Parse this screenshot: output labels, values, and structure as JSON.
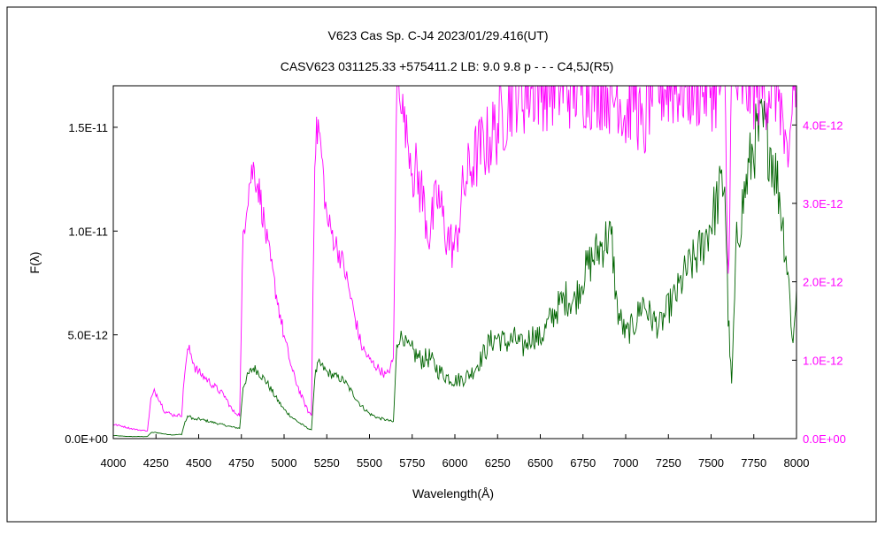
{
  "chart_data": {
    "type": "line",
    "title": "V623 Cas    Sp. C-J4    2023/01/29.416(UT)",
    "subtitle": "CASV623 031125.33 +575411.2  LB: 9.0 9.8 p - - - C4,5J(R5)",
    "xlabel": "Wavelength(Å)",
    "ylabel": "F(λ)",
    "xlim": [
      4000,
      8000
    ],
    "ylim_left": [
      0,
      1.7e-11
    ],
    "ylim_right": [
      0,
      4.5e-12
    ],
    "x_ticks": [
      4000,
      4250,
      4500,
      4750,
      5000,
      5250,
      5500,
      5750,
      6000,
      6250,
      6500,
      6750,
      7000,
      7250,
      7500,
      7750,
      8000
    ],
    "x_tick_labels": [
      "4000",
      "4250",
      "4500",
      "4750",
      "5000",
      "5250",
      "5500",
      "5750",
      "6000",
      "6250",
      "6500",
      "6750",
      "7000",
      "7250",
      "7500",
      "7750",
      "8000"
    ],
    "y_left_ticks": [
      0,
      5e-12,
      1e-11,
      1.5e-11
    ],
    "y_left_tick_labels": [
      "0.0E+00",
      "5.0E-12",
      "1.0E-11",
      "1.5E-11"
    ],
    "y_right_ticks": [
      0,
      1e-12,
      2e-12,
      3e-12,
      4e-12
    ],
    "y_right_tick_labels": [
      "0.0E+00",
      "1.0E-12",
      "2.0E-12",
      "3.0E-12",
      "4.0E-12"
    ],
    "grid": false,
    "legend": "none",
    "series": [
      {
        "axis": "left",
        "color": "#006400",
        "x": [
          4000,
          4050,
          4100,
          4150,
          4200,
          4220,
          4240,
          4260,
          4280,
          4300,
          4350,
          4380,
          4400,
          4420,
          4440,
          4460,
          4480,
          4500,
          4550,
          4600,
          4650,
          4700,
          4740,
          4760,
          4780,
          4800,
          4820,
          4840,
          4860,
          4880,
          4900,
          4950,
          5000,
          5050,
          5100,
          5140,
          5160,
          5180,
          5200,
          5220,
          5250,
          5300,
          5350,
          5400,
          5450,
          5500,
          5550,
          5600,
          5640,
          5660,
          5680,
          5700,
          5750,
          5800,
          5850,
          5900,
          5950,
          6000,
          6050,
          6100,
          6150,
          6200,
          6250,
          6300,
          6350,
          6400,
          6450,
          6500,
          6550,
          6600,
          6650,
          6700,
          6750,
          6800,
          6850,
          6900,
          6920,
          6950,
          7000,
          7050,
          7100,
          7150,
          7200,
          7250,
          7300,
          7350,
          7400,
          7450,
          7500,
          7550,
          7580,
          7600,
          7620,
          7650,
          7700,
          7750,
          7800,
          7850,
          7900,
          7950,
          7980,
          8000
        ],
        "y": [
          1.5e-13,
          1.2e-13,
          1e-13,
          1e-13,
          1e-13,
          2.8e-13,
          3e-13,
          2.8e-13,
          2.5e-13,
          2.2e-13,
          1.8e-13,
          2e-13,
          2e-13,
          8e-13,
          1.1e-12,
          1e-12,
          9e-13,
          9.5e-13,
          8.5e-13,
          7.5e-13,
          6.5e-13,
          5.5e-13,
          5e-13,
          2.5e-12,
          2.9e-12,
          3.2e-12,
          3.4e-12,
          3.3e-12,
          3.1e-12,
          2.9e-12,
          2.7e-12,
          2e-12,
          1.4e-12,
          1e-12,
          7e-13,
          5e-13,
          4e-13,
          3e-12,
          3.6e-12,
          3.5e-12,
          3.2e-12,
          3e-12,
          2.8e-12,
          2.2e-12,
          1.6e-12,
          1.2e-12,
          1e-12,
          9e-13,
          8e-13,
          4.4e-12,
          5e-12,
          4.8e-12,
          4.2e-12,
          3.8e-12,
          3.9e-12,
          3.3e-12,
          3e-12,
          2.8e-12,
          2.9e-12,
          3.2e-12,
          3.8e-12,
          4.6e-12,
          4.9e-12,
          4.6e-12,
          4.8e-12,
          4.4e-12,
          5e-12,
          4.8e-12,
          5.6e-12,
          6.3e-12,
          6.8e-12,
          6.6e-12,
          7.8e-12,
          8.6e-12,
          9.2e-12,
          9.8e-12,
          9.4e-12,
          6.2e-12,
          5e-12,
          5.5e-12,
          6.6e-12,
          5.8e-12,
          5.4e-12,
          6.3e-12,
          7e-12,
          8e-12,
          8.6e-12,
          9.3e-12,
          1.05e-11,
          1.18e-11,
          1.25e-11,
          6e-12,
          2.5e-12,
          9.5e-12,
          1.2e-11,
          1.42e-11,
          1.5e-11,
          1.4e-11,
          1.18e-11,
          8e-12,
          4.5e-12,
          7.2e-12
        ]
      },
      {
        "axis": "right",
        "color": "#ff00ff",
        "x": [
          4000,
          4050,
          4100,
          4150,
          4200,
          4220,
          4240,
          4260,
          4280,
          4300,
          4350,
          4380,
          4400,
          4420,
          4440,
          4460,
          4480,
          4500,
          4550,
          4600,
          4650,
          4700,
          4740,
          4760,
          4780,
          4800,
          4820,
          4840,
          4860,
          4880,
          4900,
          4950,
          5000,
          5050,
          5100,
          5140,
          5160,
          5180,
          5200,
          5220,
          5250,
          5300,
          5350,
          5400,
          5450,
          5500,
          5550,
          5600,
          5640,
          5660,
          5680,
          5700,
          5750,
          5800,
          5850,
          5900,
          5950,
          6000,
          6050,
          6100,
          6150,
          6200,
          6250,
          6300,
          6350,
          6400,
          6450,
          6500,
          6550,
          6600,
          6650,
          6700,
          6750,
          6800,
          6850,
          6900,
          6920,
          6950,
          7000,
          7050,
          7100,
          7150,
          7200,
          7250,
          7300,
          7350,
          7400,
          7450,
          7500,
          7550,
          7580,
          7600,
          7620,
          7650,
          7700,
          7750,
          7800,
          7850,
          7900,
          7950,
          7980,
          8000
        ],
        "y": [
          1.8e-13,
          1.6e-13,
          1.3e-13,
          1.1e-13,
          1e-13,
          5e-13,
          6e-13,
          5.5e-13,
          4.5e-13,
          3.5e-13,
          3e-13,
          3e-13,
          3e-13,
          9e-13,
          1.15e-12,
          1.05e-12,
          9e-13,
          8.5e-13,
          7.5e-13,
          6.5e-13,
          5.5e-13,
          3.5e-13,
          3e-13,
          2.6e-12,
          3e-12,
          3.3e-12,
          3.45e-12,
          3.3e-12,
          3.1e-12,
          2.8e-12,
          2.5e-12,
          1.9e-12,
          1.3e-12,
          8.5e-13,
          5.5e-13,
          3.5e-13,
          3e-13,
          3.7e-12,
          4e-12,
          3.6e-12,
          2.8e-12,
          2.5e-12,
          2.2e-12,
          1.7e-12,
          1.2e-12,
          1e-12,
          9e-13,
          8e-13,
          1e-12,
          4.5e-12,
          4.5e-12,
          4.1e-12,
          3.5e-12,
          3.2e-12,
          2.6e-12,
          3.1e-12,
          2.6e-12,
          2.4e-12,
          3.2e-12,
          3.5e-12,
          3.7e-12,
          3.8e-12,
          4e-12,
          4.2e-12,
          4.5e-12,
          4.4e-12,
          4.5e-12,
          4.5e-12,
          4.5e-12,
          4.5e-12,
          4.5e-12,
          4.5e-12,
          4.5e-12,
          4.5e-12,
          4.5e-12,
          4.5e-12,
          4.2e-12,
          4.5e-12,
          4.1e-12,
          4.5e-12,
          3.8e-12,
          4.5e-12,
          4.5e-12,
          4.5e-12,
          4.5e-12,
          4.5e-12,
          4.5e-12,
          4.5e-12,
          4.5e-12,
          4.5e-12,
          4.5e-12,
          2e-12,
          4.5e-12,
          4.5e-12,
          4.5e-12,
          4.5e-12,
          4.5e-12,
          4.5e-12,
          4.5e-12,
          3.2e-12,
          4.5e-12,
          4.5e-12
        ]
      }
    ]
  }
}
